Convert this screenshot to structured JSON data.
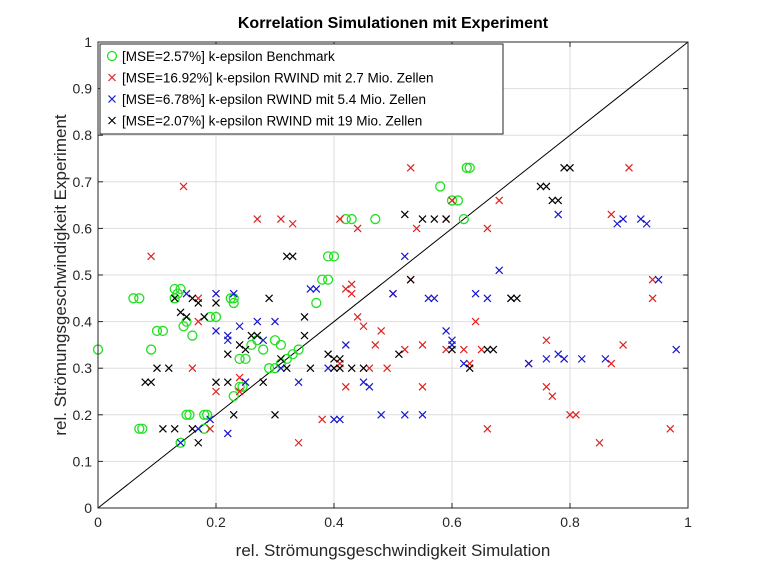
{
  "chart_data": {
    "type": "scatter",
    "title": "Korrelation Simulationen mit Experiment",
    "xlabel": "rel. Strömungsgeschwindigkeit Simulation",
    "ylabel": "rel. Strömungsgeschwindigkeit Experiment",
    "xlim": [
      0,
      1
    ],
    "ylim": [
      0,
      1
    ],
    "xticks": [
      "0",
      "0.2",
      "0.4",
      "0.6",
      "0.8",
      "1"
    ],
    "yticks": [
      "0",
      "0.1",
      "0.2",
      "0.3",
      "0.4",
      "0.5",
      "0.6",
      "0.7",
      "0.8",
      "0.9",
      "1"
    ],
    "grid": true,
    "legend_position": "top-left",
    "reference_line": "y = x",
    "series": [
      {
        "name": "[MSE=2.57%] k-epsilon Benchmark",
        "marker": "circle",
        "color": "#22e022",
        "x": [
          0,
          0.06,
          0.07,
          0.07,
          0.075,
          0.09,
          0.1,
          0.11,
          0.13,
          0.13,
          0.14,
          0.135,
          0.15,
          0.145,
          0.15,
          0.155,
          0.14,
          0.16,
          0.18,
          0.18,
          0.185,
          0.19,
          0.2,
          0.225,
          0.23,
          0.23,
          0.24,
          0.245,
          0.23,
          0.24,
          0.25,
          0.26,
          0.27,
          0.28,
          0.29,
          0.3,
          0.31,
          0.32,
          0.33,
          0.34,
          0.3,
          0.31,
          0.37,
          0.38,
          0.39,
          0.39,
          0.4,
          0.42,
          0.43,
          0.47,
          0.58,
          0.6,
          0.61,
          0.62,
          0.63,
          0.625
        ],
        "y": [
          0.34,
          0.45,
          0.45,
          0.17,
          0.17,
          0.34,
          0.38,
          0.38,
          0.45,
          0.47,
          0.47,
          0.46,
          0.4,
          0.39,
          0.2,
          0.2,
          0.14,
          0.37,
          0.2,
          0.17,
          0.2,
          0.41,
          0.41,
          0.45,
          0.45,
          0.44,
          0.26,
          0.26,
          0.24,
          0.32,
          0.32,
          0.35,
          0.36,
          0.34,
          0.3,
          0.3,
          0.31,
          0.32,
          0.33,
          0.34,
          0.36,
          0.35,
          0.44,
          0.49,
          0.49,
          0.54,
          0.54,
          0.62,
          0.62,
          0.62,
          0.69,
          0.66,
          0.66,
          0.62,
          0.73,
          0.73
        ]
      },
      {
        "name": "[MSE=16.92%] k-epsilon RWIND mit 2.7 Mio. Zellen",
        "marker": "x",
        "color": "#e02020",
        "x": [
          0.09,
          0.145,
          0.17,
          0.17,
          0.16,
          0.19,
          0.2,
          0.24,
          0.24,
          0.27,
          0.31,
          0.33,
          0.41,
          0.43,
          0.42,
          0.43,
          0.44,
          0.45,
          0.41,
          0.42,
          0.34,
          0.38,
          0.46,
          0.47,
          0.48,
          0.49,
          0.53,
          0.54,
          0.53,
          0.5,
          0.44,
          0.59,
          0.6,
          0.66,
          0.68,
          0.66,
          0.65,
          0.64,
          0.55,
          0.52,
          0.55,
          0.59,
          0.63,
          0.62,
          0.73,
          0.76,
          0.76,
          0.77,
          0.79,
          0.8,
          0.81,
          0.85,
          0.87,
          0.9,
          0.94,
          0.94,
          0.89,
          0.97,
          0.87
        ],
        "y": [
          0.54,
          0.69,
          0.45,
          0.4,
          0.3,
          0.17,
          0.25,
          0.28,
          0.25,
          0.62,
          0.62,
          0.61,
          0.62,
          0.48,
          0.47,
          0.46,
          0.41,
          0.39,
          0.31,
          0.26,
          0.14,
          0.19,
          0.3,
          0.35,
          0.38,
          0.3,
          0.73,
          0.6,
          0.49,
          0.46,
          0.6,
          0.62,
          0.66,
          0.6,
          0.66,
          0.17,
          0.34,
          0.4,
          0.35,
          0.34,
          0.26,
          0.34,
          0.31,
          0.34,
          0.31,
          0.36,
          0.26,
          0.24,
          0.32,
          0.2,
          0.2,
          0.14,
          0.63,
          0.73,
          0.45,
          0.49,
          0.35,
          0.17,
          0.31
        ]
      },
      {
        "name": "[MSE=6.78%] k-epsilon RWIND mit 5.4 Mio. Zellen",
        "marker": "x",
        "color": "#1515cc",
        "x": [
          0.15,
          0.2,
          0.22,
          0.24,
          0.22,
          0.2,
          0.23,
          0.27,
          0.28,
          0.14,
          0.17,
          0.19,
          0.22,
          0.25,
          0.3,
          0.31,
          0.34,
          0.36,
          0.37,
          0.39,
          0.4,
          0.41,
          0.42,
          0.45,
          0.46,
          0.48,
          0.5,
          0.52,
          0.52,
          0.55,
          0.56,
          0.57,
          0.59,
          0.6,
          0.6,
          0.64,
          0.62,
          0.66,
          0.68,
          0.7,
          0.73,
          0.76,
          0.78,
          0.79,
          0.82,
          0.78,
          0.86,
          0.88,
          0.89,
          0.92,
          0.93,
          0.95,
          0.98
        ],
        "y": [
          0.46,
          0.38,
          0.37,
          0.39,
          0.36,
          0.46,
          0.46,
          0.4,
          0.36,
          0.14,
          0.17,
          0.19,
          0.16,
          0.27,
          0.4,
          0.3,
          0.27,
          0.47,
          0.47,
          0.3,
          0.19,
          0.19,
          0.35,
          0.27,
          0.26,
          0.2,
          0.46,
          0.54,
          0.2,
          0.2,
          0.45,
          0.45,
          0.38,
          0.36,
          0.35,
          0.46,
          0.31,
          0.45,
          0.51,
          0.45,
          0.31,
          0.32,
          0.33,
          0.32,
          0.32,
          0.63,
          0.32,
          0.61,
          0.62,
          0.62,
          0.61,
          0.49,
          0.34
        ]
      },
      {
        "name": "[MSE=2.07%] k-epsilon RWIND mit 19 Mio. Zellen",
        "marker": "x",
        "color": "#000000",
        "x": [
          0.08,
          0.09,
          0.1,
          0.13,
          0.14,
          0.15,
          0.16,
          0.17,
          0.18,
          0.2,
          0.12,
          0.11,
          0.13,
          0.16,
          0.17,
          0.2,
          0.22,
          0.23,
          0.22,
          0.24,
          0.25,
          0.26,
          0.27,
          0.28,
          0.3,
          0.32,
          0.33,
          0.29,
          0.31,
          0.32,
          0.35,
          0.35,
          0.36,
          0.39,
          0.4,
          0.41,
          0.43,
          0.45,
          0.51,
          0.52,
          0.53,
          0.55,
          0.57,
          0.59,
          0.6,
          0.63,
          0.66,
          0.67,
          0.75,
          0.76,
          0.77,
          0.78,
          0.79,
          0.8,
          0.7,
          0.71,
          0.4,
          0.41
        ],
        "y": [
          0.27,
          0.27,
          0.3,
          0.45,
          0.42,
          0.41,
          0.45,
          0.44,
          0.41,
          0.44,
          0.3,
          0.17,
          0.17,
          0.17,
          0.14,
          0.27,
          0.27,
          0.2,
          0.33,
          0.35,
          0.34,
          0.37,
          0.37,
          0.27,
          0.2,
          0.54,
          0.54,
          0.45,
          0.32,
          0.3,
          0.37,
          0.41,
          0.3,
          0.33,
          0.3,
          0.3,
          0.3,
          0.3,
          0.33,
          0.63,
          0.49,
          0.62,
          0.62,
          0.62,
          0.34,
          0.3,
          0.34,
          0.34,
          0.69,
          0.69,
          0.66,
          0.66,
          0.73,
          0.73,
          0.45,
          0.45,
          0.32,
          0.32
        ]
      }
    ]
  }
}
